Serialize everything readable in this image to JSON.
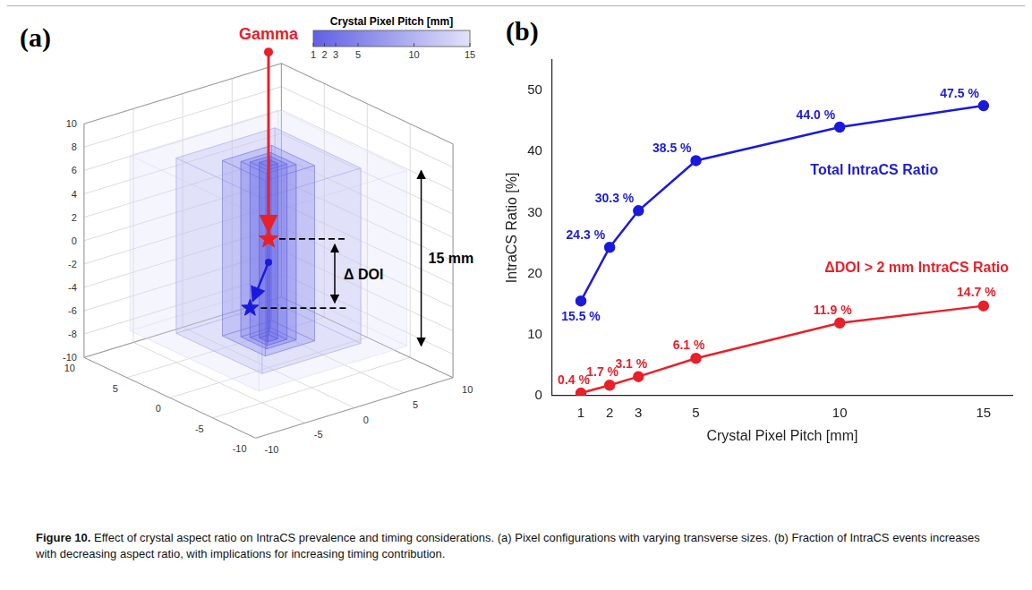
{
  "figure": {
    "caption_label": "Figure 10.",
    "caption_text": "Effect of crystal aspect ratio on IntraCS prevalence and timing considerations. (a) Pixel configurations with varying transverse sizes. (b) Fraction of IntraCS events increases with decreasing aspect ratio, with implications for increasing timing contribution."
  },
  "panel_a": {
    "label": "(a)",
    "gamma_label": "Gamma",
    "delta_doi_label": "Δ DOI",
    "height_label": "15 mm",
    "colorbar": {
      "title": "Crystal Pixel Pitch [mm]",
      "range": [
        1,
        15
      ],
      "ticks": [
        1,
        2,
        3,
        5,
        10,
        15
      ]
    },
    "crystal_pitches": [
      1,
      2,
      3,
      5,
      10,
      15
    ],
    "crystal_height": 15,
    "axis_range": [
      -10,
      10
    ],
    "x_ticks": [
      -10,
      -5,
      0,
      5,
      10
    ],
    "y_ticks": [
      -10,
      -5,
      0,
      5,
      10
    ],
    "z_ticks": [
      -10,
      -8,
      -6,
      -4,
      -2,
      0,
      2,
      4,
      6,
      8,
      10
    ]
  },
  "chart_data": {
    "type": "line",
    "title": "(b)",
    "x_label": "Crystal Pixel Pitch [mm]",
    "y_label": "IntraCS Ratio [%]",
    "x": [
      1,
      2,
      3,
      5,
      10,
      15
    ],
    "xlim": [
      0,
      16
    ],
    "xticks": [
      1,
      2,
      3,
      5,
      10,
      15
    ],
    "ylim": [
      0,
      55
    ],
    "yticks": [
      0,
      10,
      20,
      30,
      40,
      50
    ],
    "grid": false,
    "data_labels": true,
    "series": [
      {
        "name": "Total IntraCS Ratio",
        "color": "#1a1adc",
        "marker": "circle",
        "values": [
          15.5,
          24.3,
          30.3,
          38.5,
          44.0,
          47.5
        ],
        "value_labels": [
          "15.5 %",
          "24.3 %",
          "30.3 %",
          "38.5 %",
          "44.0 %",
          "47.5 %"
        ]
      },
      {
        "name": "ΔDOI > 2 mm IntraCS Ratio",
        "color": "#e8202a",
        "marker": "circle",
        "values": [
          0.4,
          1.7,
          3.1,
          6.1,
          11.9,
          14.7
        ],
        "value_labels": [
          "0.4 %",
          "1.7 %",
          "3.1 %",
          "6.1 %",
          "11.9 %",
          "14.7 %"
        ]
      }
    ]
  }
}
